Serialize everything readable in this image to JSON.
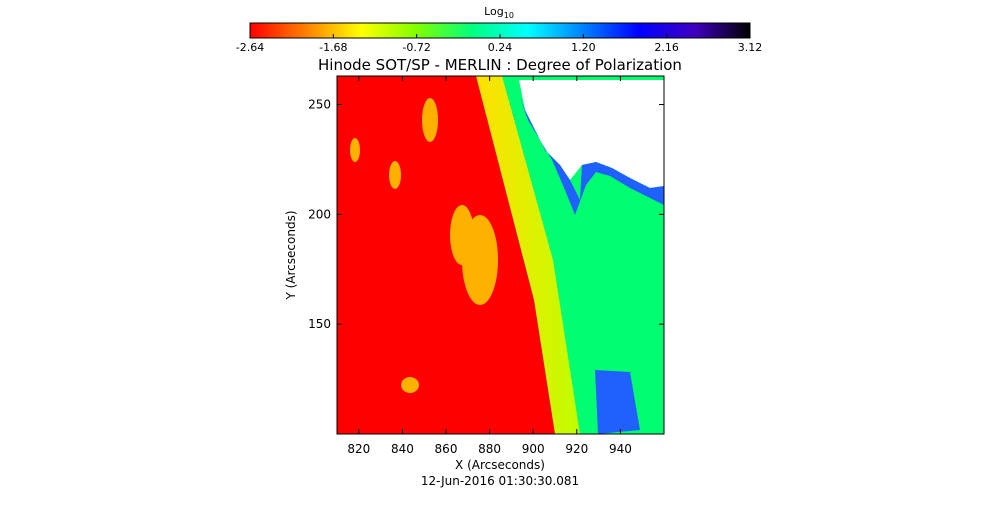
{
  "chart_data": {
    "type": "heatmap",
    "title": "Hinode SOT/SP - MERLIN : Degree of Polarization",
    "xlabel": "X (Arcseconds)",
    "ylabel": "Y (Arcseconds)",
    "timestamp": "12-Jun-2016 01:30:30.081",
    "xlim": [
      810,
      960
    ],
    "ylim": [
      100,
      263
    ],
    "x_ticks": [
      {
        "value": 820,
        "label": "820"
      },
      {
        "value": 840,
        "label": "840"
      },
      {
        "value": 860,
        "label": "860"
      },
      {
        "value": 880,
        "label": "880"
      },
      {
        "value": 900,
        "label": "900"
      },
      {
        "value": 920,
        "label": "920"
      },
      {
        "value": 940,
        "label": "940"
      }
    ],
    "y_ticks": [
      {
        "value": 150,
        "label": "150"
      },
      {
        "value": 200,
        "label": "200"
      },
      {
        "value": 250,
        "label": "250"
      }
    ],
    "colorbar": {
      "label_base": "Log",
      "label_sub": "10",
      "range": [
        -2.64,
        3.12
      ],
      "ticks": [
        {
          "value": -2.64,
          "label": "-2.64"
        },
        {
          "value": -1.68,
          "label": "-1.68"
        },
        {
          "value": -0.72,
          "label": "-0.72"
        },
        {
          "value": 0.24,
          "label": "0.24"
        },
        {
          "value": 1.2,
          "label": "1.20"
        },
        {
          "value": 2.16,
          "label": "2.16"
        },
        {
          "value": 3.12,
          "label": "3.12"
        }
      ],
      "stops": [
        "#ff0000",
        "#ff8000",
        "#ffff00",
        "#80ff00",
        "#00ff80",
        "#00ffff",
        "#0080ff",
        "#0000ff",
        "#4000c0",
        "#000000"
      ]
    },
    "regions": {
      "disk": {
        "value": -2.64,
        "color": "#ff0000"
      },
      "limb_band": {
        "value": -1.2,
        "colors": [
          "#ffe000",
          "#c0ff00"
        ]
      },
      "off_limb": {
        "value": 0.1,
        "color": "#00ff70"
      },
      "far_off_limb": {
        "value": 1.6,
        "color": "#2060ff"
      },
      "no_data": {
        "color": "#ffffff"
      }
    }
  }
}
